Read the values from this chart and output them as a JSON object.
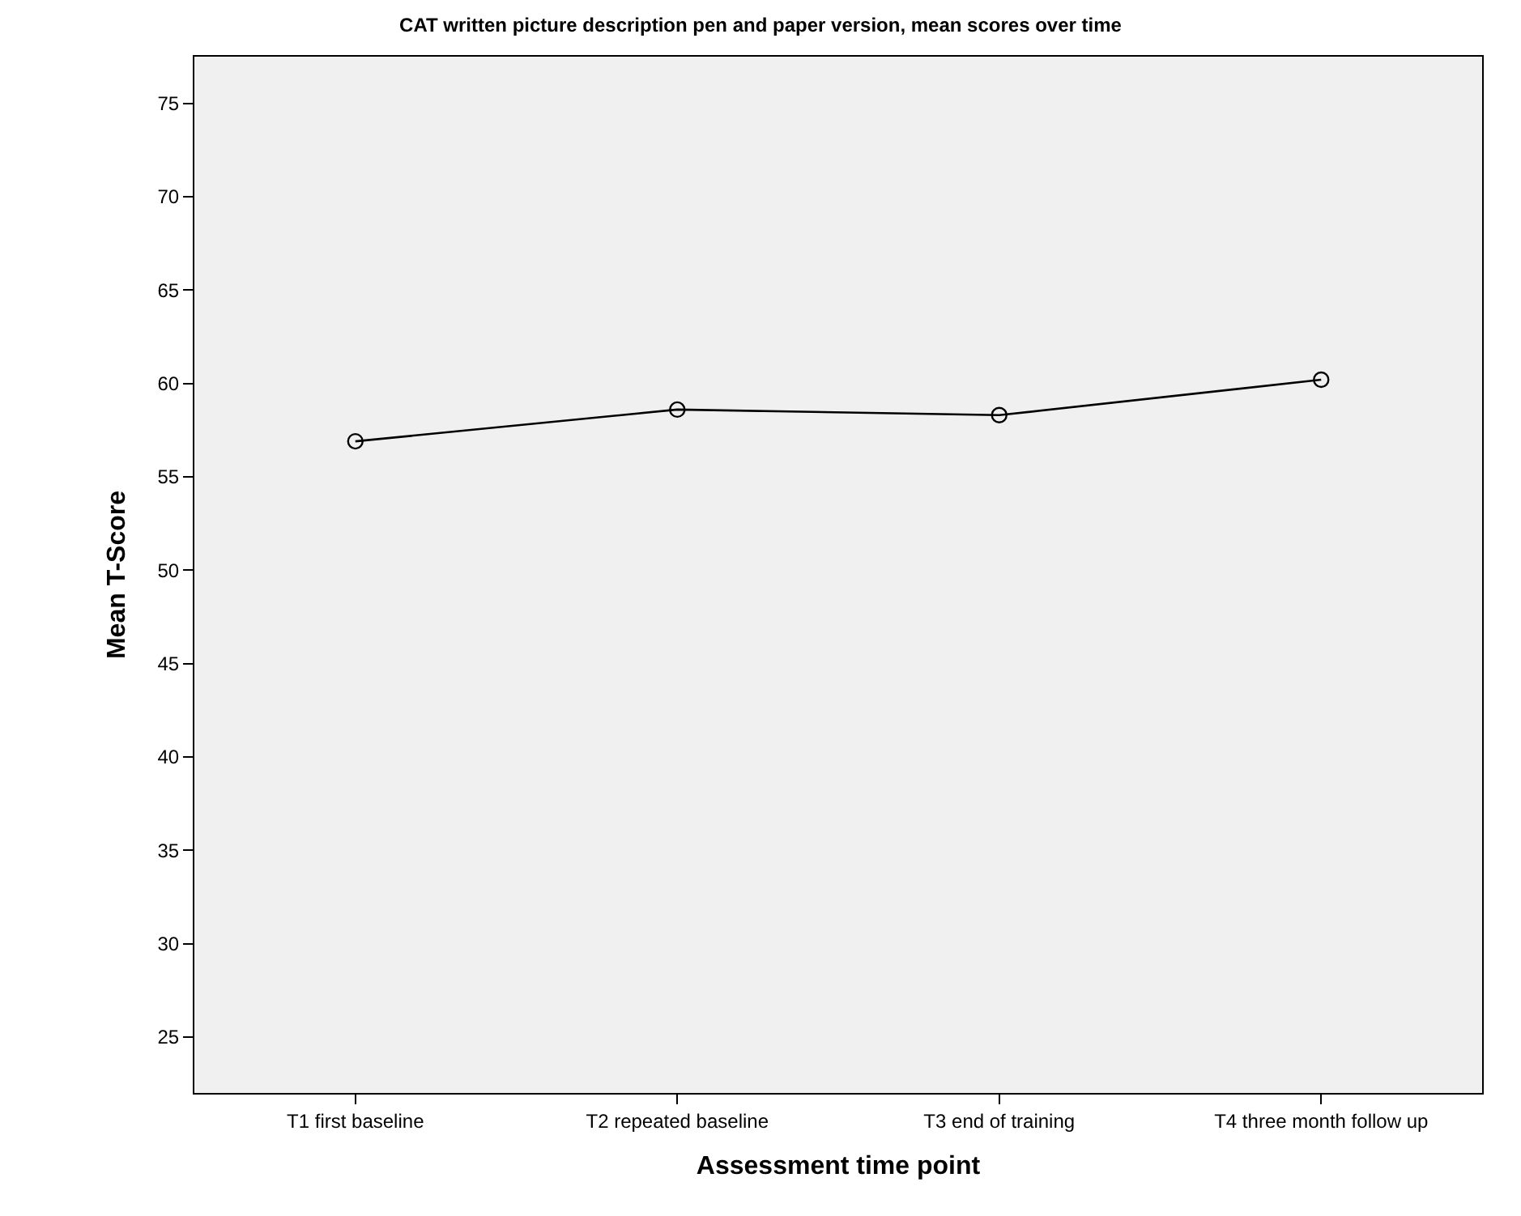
{
  "chart_data": {
    "type": "line",
    "title": "CAT written picture description pen and paper version, mean scores over time",
    "xlabel": "Assessment time point",
    "ylabel": "Mean T-Score",
    "categories": [
      "T1 first baseline",
      "T2 repeated baseline",
      "T3 end of training",
      "T4 three month follow up"
    ],
    "series": [
      {
        "color": "#000000",
        "values": [
          56.9,
          58.6,
          58.3,
          60.2
        ]
      }
    ],
    "ylim": [
      22,
      77.5
    ],
    "yticks": [
      25,
      30,
      35,
      40,
      45,
      50,
      55,
      60,
      65,
      70,
      75
    ],
    "grid": false,
    "marker": "circle",
    "line_style": "solid"
  }
}
